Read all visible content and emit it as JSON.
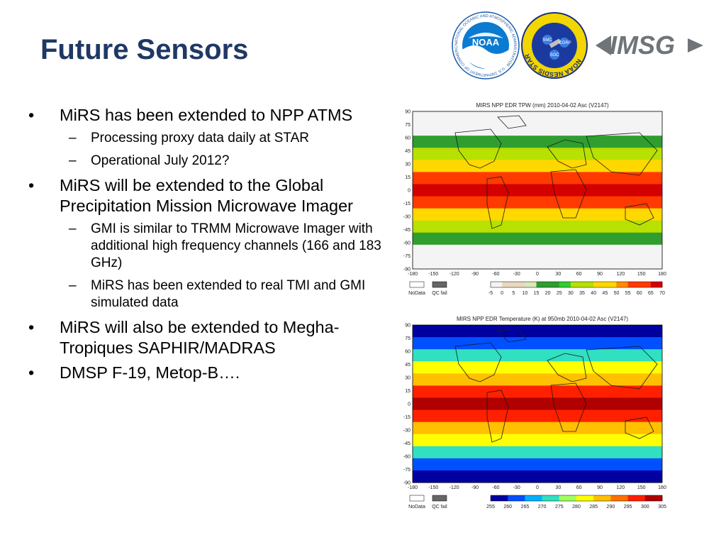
{
  "slide": {
    "title": "Future Sensors",
    "bullets": [
      {
        "text": "MiRS has been extended to NPP ATMS",
        "subs": [
          "Processing proxy data daily at STAR",
          "Operational July 2012?"
        ]
      },
      {
        "text": "MiRS will be extended to the Global Precipitation Mission Microwave Imager",
        "subs": [
          "GMI is similar to TRMM Microwave Imager with additional high frequency channels (166 and 183 GHz)",
          "MiRS has been extended to real TMI and GMI simulated data"
        ]
      },
      {
        "text": "MiRS will also be extended to Megha-Tropiques SAPHIR/MADRAS",
        "subs": []
      },
      {
        "text": "DMSP F-19, Metop-B….",
        "subs": []
      }
    ]
  },
  "logos": {
    "noaa": {
      "center": "NOAA",
      "ring": "NATIONAL OCEANIC AND ATMOSPHERIC ADMINISTRATION · U.S. DEPARTMENT OF COMMERCE"
    },
    "star": {
      "ring": "NOAA NESDIS STAR",
      "top": "SMC",
      "right": "CORP",
      "bottom": "SOC"
    },
    "imsg": {
      "text": "IMSG"
    }
  },
  "maps": [
    {
      "title": "MIRS NPP EDR TPW (mm) 2010-04-02 Asc (V2147)",
      "lat_ticks": [
        "90",
        "75",
        "60",
        "45",
        "30",
        "15",
        "0",
        "-15",
        "-30",
        "-45",
        "-60",
        "-75",
        "-90"
      ],
      "lon_ticks": [
        "-180",
        "-150",
        "-120",
        "-90",
        "-60",
        "-30",
        "0",
        "30",
        "60",
        "90",
        "120",
        "150",
        "180"
      ],
      "legend_boxes": [
        "NoData",
        "QC fail"
      ],
      "colorbar_ticks": [
        "-5",
        "0",
        "5",
        "10",
        "15",
        "20",
        "25",
        "30",
        "35",
        "40",
        "45",
        "50",
        "55",
        "60",
        "65",
        "70"
      ],
      "colors": [
        "#f4f4f4",
        "#e8d8c0",
        "#d8e8b8",
        "#2f9e2f",
        "#33cc33",
        "#b8e000",
        "#ffd800",
        "#ff8c00",
        "#ff3a00",
        "#d40000"
      ]
    },
    {
      "title": "MIRS NPP EDR Temperature (K) at 950mb 2010-04-02 Asc (V2147)",
      "lat_ticks": [
        "90",
        "75",
        "60",
        "45",
        "30",
        "15",
        "0",
        "-15",
        "-30",
        "-45",
        "-60",
        "-75",
        "-90"
      ],
      "lon_ticks": [
        "-180",
        "-150",
        "-120",
        "-90",
        "-60",
        "-30",
        "0",
        "30",
        "60",
        "90",
        "120",
        "150",
        "180"
      ],
      "legend_boxes": [
        "NoData",
        "QC fail"
      ],
      "colorbar_ticks": [
        "255",
        "260",
        "265",
        "270",
        "275",
        "280",
        "285",
        "290",
        "295",
        "300",
        "305"
      ],
      "colors": [
        "#0000a0",
        "#0050ff",
        "#00b0ff",
        "#30e0c0",
        "#a0ff60",
        "#ffff00",
        "#ffc000",
        "#ff7000",
        "#ff2000",
        "#b00000"
      ]
    }
  ]
}
